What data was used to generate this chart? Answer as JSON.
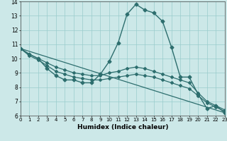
{
  "xlabel": "Humidex (Indice chaleur)",
  "bg_color": "#cce8e8",
  "grid_color": "#99cccc",
  "line_color": "#2d6e6e",
  "xlim": [
    0,
    23
  ],
  "ylim": [
    6,
    14
  ],
  "yticks": [
    6,
    7,
    8,
    9,
    10,
    11,
    12,
    13,
    14
  ],
  "xticks": [
    0,
    1,
    2,
    3,
    4,
    5,
    6,
    7,
    8,
    9,
    10,
    11,
    12,
    13,
    14,
    15,
    16,
    17,
    18,
    19,
    20,
    21,
    22,
    23
  ],
  "lines": [
    {
      "x": [
        0,
        1,
        2,
        3,
        4,
        5,
        6,
        7,
        8,
        9,
        10,
        11,
        12,
        13,
        14,
        15,
        16,
        17,
        18,
        19,
        20,
        21,
        22,
        23
      ],
      "y": [
        10.7,
        10.3,
        10.0,
        9.3,
        8.8,
        8.5,
        8.5,
        8.3,
        8.3,
        8.9,
        9.8,
        11.1,
        13.1,
        13.8,
        13.4,
        13.2,
        12.6,
        10.8,
        8.7,
        8.7,
        7.5,
        6.5,
        6.7,
        6.2
      ],
      "markersize": 2.5,
      "linewidth": 1.0
    },
    {
      "x": [
        0,
        23
      ],
      "y": [
        10.7,
        6.2
      ],
      "markersize": 2.0,
      "linewidth": 0.9
    },
    {
      "x": [
        0,
        1,
        2,
        3,
        4,
        5,
        6,
        7,
        8,
        9,
        10,
        11,
        12,
        13,
        14,
        15,
        16,
        17,
        18,
        19,
        20,
        21,
        22,
        23
      ],
      "y": [
        10.7,
        10.3,
        10.0,
        9.7,
        9.4,
        9.2,
        9.0,
        8.9,
        8.8,
        8.8,
        9.0,
        9.1,
        9.3,
        9.4,
        9.3,
        9.1,
        8.9,
        8.7,
        8.5,
        8.3,
        7.6,
        7.0,
        6.7,
        6.4
      ],
      "markersize": 2.0,
      "linewidth": 0.9
    },
    {
      "x": [
        0,
        1,
        2,
        3,
        4,
        5,
        6,
        7,
        8,
        9,
        10,
        11,
        12,
        13,
        14,
        15,
        16,
        17,
        18,
        19,
        20,
        21,
        22,
        23
      ],
      "y": [
        10.7,
        10.2,
        9.9,
        9.5,
        9.1,
        8.9,
        8.7,
        8.6,
        8.5,
        8.5,
        8.6,
        8.7,
        8.8,
        8.9,
        8.8,
        8.7,
        8.5,
        8.3,
        8.1,
        7.9,
        7.4,
        6.9,
        6.6,
        6.3
      ],
      "markersize": 2.0,
      "linewidth": 0.9
    }
  ]
}
